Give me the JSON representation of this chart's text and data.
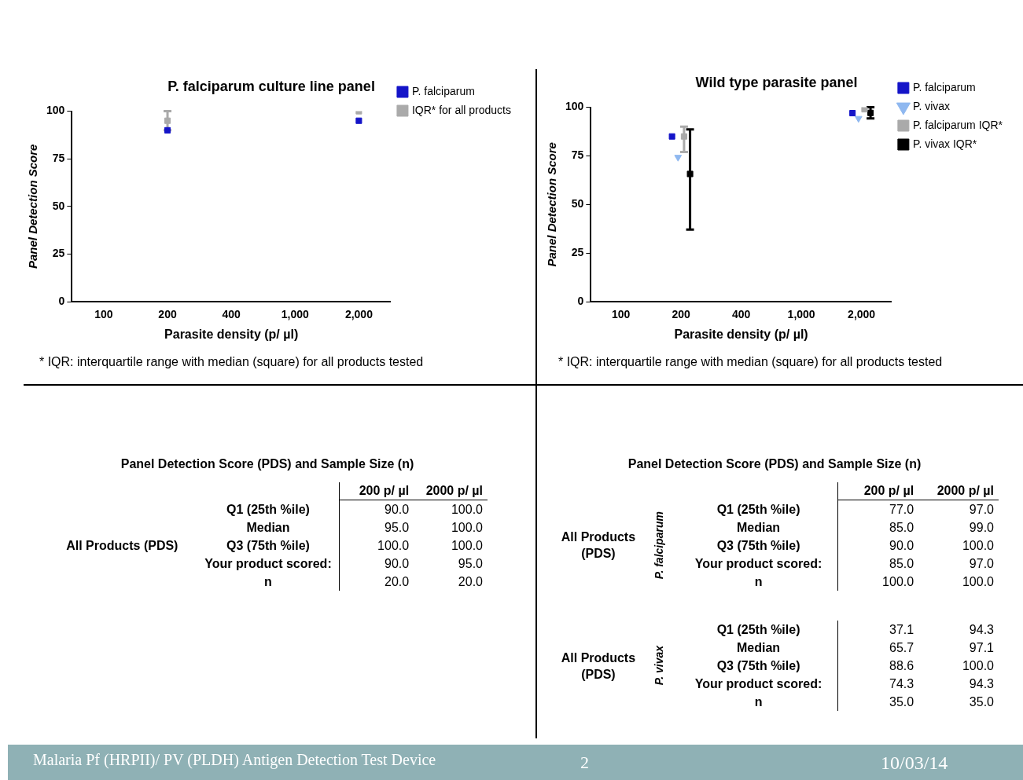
{
  "chart_data": [
    {
      "type": "scatter",
      "title": "P. falciparum culture line panel",
      "xlabel": "Parasite density (p/ µl)",
      "ylabel": "Panel Detection Score",
      "categories": [
        "100",
        "200",
        "400",
        "1,000",
        "2,000"
      ],
      "ylim": [
        0,
        100
      ],
      "yticks": [
        0,
        25,
        50,
        75,
        100
      ],
      "grid": false,
      "legend": "top right",
      "series": [
        {
          "name": "P. falciparum",
          "color": "#1414c8",
          "marker": "square",
          "values": [
            null,
            90,
            null,
            null,
            95
          ]
        },
        {
          "name": "IQR* for all products",
          "color": "#aaaaaa",
          "marker": "square",
          "values": [
            null,
            95,
            null,
            null,
            100
          ],
          "errors": [
            null,
            [
              90,
              100
            ],
            null,
            null,
            null
          ]
        }
      ],
      "annotations": [
        "* IQR: interquartile range with median (square) for all products tested"
      ]
    },
    {
      "type": "scatter",
      "title": "Wild type parasite panel",
      "xlabel": "Parasite density (p/ µl)",
      "ylabel": "Panel Detection Score",
      "categories": [
        "100",
        "200",
        "400",
        "1,000",
        "2,000"
      ],
      "ylim": [
        0,
        100
      ],
      "yticks": [
        0,
        25,
        50,
        75,
        100
      ],
      "grid": false,
      "legend": "top right",
      "series": [
        {
          "name": "P. falciparum",
          "color": "#1414c8",
          "marker": "square",
          "values": [
            null,
            85,
            null,
            null,
            97
          ]
        },
        {
          "name": "P. vivax",
          "color": "#8fb8f0",
          "marker": "triangle",
          "values": [
            null,
            74.3,
            null,
            null,
            94.3
          ]
        },
        {
          "name": "P. falciparum IQR*",
          "color": "#aaaaaa",
          "marker": "square",
          "values": [
            null,
            85,
            null,
            null,
            99
          ],
          "errors": [
            null,
            [
              77,
              90
            ],
            null,
            null,
            null
          ]
        },
        {
          "name": "P. vivax IQR*",
          "color": "#000000",
          "marker": "square",
          "values": [
            null,
            65.7,
            null,
            null,
            97.1
          ],
          "errors": [
            null,
            [
              37.1,
              88.6
            ],
            null,
            null,
            [
              94.3,
              100
            ]
          ]
        }
      ],
      "annotations": [
        "* IQR: interquartile range with median (square) for all products tested"
      ]
    },
    {
      "type": "other",
      "title": "Panel Detection Score (PDS) and Sample Size (n)",
      "categories": [
        "200 p/ µl",
        "2000 p/ µl"
      ],
      "y_categories": [
        "Q1 (25th %ile)",
        "Median",
        "Q3 (75th %ile)",
        "Your product scored:",
        "n"
      ],
      "cell_labels": [
        [
          "90.0",
          "100.0"
        ],
        [
          "95.0",
          "100.0"
        ],
        [
          "100.0",
          "100.0"
        ],
        [
          "90.0",
          "95.0"
        ],
        [
          "20.0",
          "20.0"
        ]
      ],
      "annotations": [
        "All Products (PDS)"
      ]
    },
    {
      "type": "other",
      "title": "Panel Detection Score (PDS) and Sample Size (n)",
      "categories": [
        "200 p/ µl",
        "2000 p/ µl"
      ],
      "ylabel": "P. falciparum",
      "y_categories": [
        "Q1 (25th %ile)",
        "Median",
        "Q3 (75th %ile)",
        "Your product scored:",
        "n"
      ],
      "cell_labels": [
        [
          "77.0",
          "97.0"
        ],
        [
          "85.0",
          "99.0"
        ],
        [
          "90.0",
          "100.0"
        ],
        [
          "85.0",
          "97.0"
        ],
        [
          "100.0",
          "100.0"
        ]
      ],
      "annotations": [
        "All Products (PDS)"
      ]
    },
    {
      "type": "other",
      "ylabel": "P. vivax",
      "y_categories": [
        "Q1 (25th %ile)",
        "Median",
        "Q3 (75th %ile)",
        "Your product scored:",
        "n"
      ],
      "cell_labels": [
        [
          "37.1",
          "94.3"
        ],
        [
          "65.7",
          "97.1"
        ],
        [
          "88.6",
          "100.0"
        ],
        [
          "74.3",
          "94.3"
        ],
        [
          "35.0",
          "35.0"
        ]
      ],
      "annotations": [
        "All Products (PDS)",
        "Malaria Pf (HRPII)/ PV (PLDH) Antigen Detection Test Device",
        "2",
        "10/03/14"
      ]
    }
  ]
}
